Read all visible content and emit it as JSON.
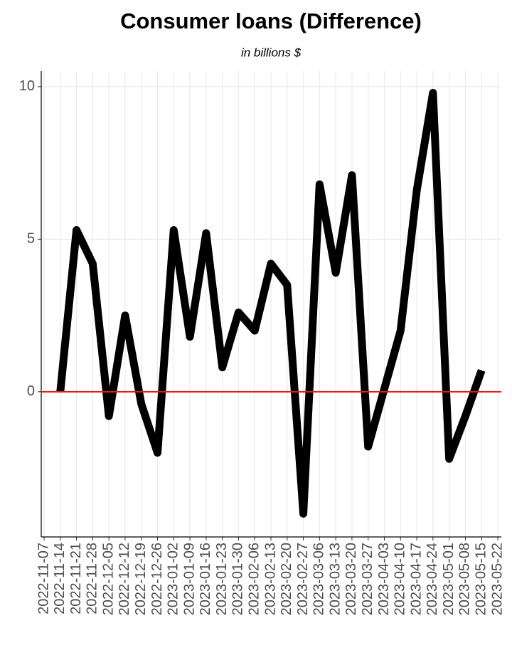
{
  "chart_data": {
    "type": "line",
    "title": "Consumer loans (Difference)",
    "subtitle": "in billions $",
    "x": [
      "2022-11-14",
      "2022-11-21",
      "2022-11-28",
      "2022-12-05",
      "2022-12-12",
      "2022-12-19",
      "2022-12-26",
      "2023-01-02",
      "2023-01-09",
      "2023-01-16",
      "2023-01-23",
      "2023-01-30",
      "2023-02-06",
      "2023-02-13",
      "2023-02-20",
      "2023-02-27",
      "2023-03-06",
      "2023-03-13",
      "2023-03-20",
      "2023-03-27",
      "2023-04-03",
      "2023-04-10",
      "2023-04-17",
      "2023-04-24",
      "2023-05-01",
      "2023-05-08",
      "2023-05-15"
    ],
    "series": [
      {
        "color": "#000000",
        "values": [
          0,
          5.3,
          4.2,
          -0.8,
          2.5,
          -0.4,
          -2.0,
          5.3,
          1.8,
          5.2,
          0.8,
          2.6,
          2.0,
          4.2,
          3.5,
          -4.0,
          6.8,
          3.9,
          7.1,
          -1.8,
          0.1,
          2.0,
          6.6,
          9.8,
          -2.2,
          -0.8,
          0.7
        ]
      }
    ],
    "xlim": [
      "2022-11-07",
      "2023-05-22"
    ],
    "xticks": [
      "2022-11-07",
      "2022-11-14",
      "2022-11-21",
      "2022-11-28",
      "2022-12-05",
      "2022-12-12",
      "2022-12-19",
      "2022-12-26",
      "2023-01-02",
      "2023-01-09",
      "2023-01-16",
      "2023-01-23",
      "2023-01-30",
      "2023-02-06",
      "2023-02-13",
      "2023-02-20",
      "2023-02-27",
      "2023-03-06",
      "2023-03-13",
      "2023-03-20",
      "2023-03-27",
      "2023-04-03",
      "2023-04-10",
      "2023-04-17",
      "2023-04-24",
      "2023-05-01",
      "2023-05-08",
      "2023-05-15",
      "2023-05-22"
    ],
    "ylim": [
      -4.76,
      10.51
    ],
    "yticks": [
      0,
      5,
      10
    ],
    "hline": {
      "value": 0,
      "color": "#e41a1c"
    },
    "grid": true
  }
}
